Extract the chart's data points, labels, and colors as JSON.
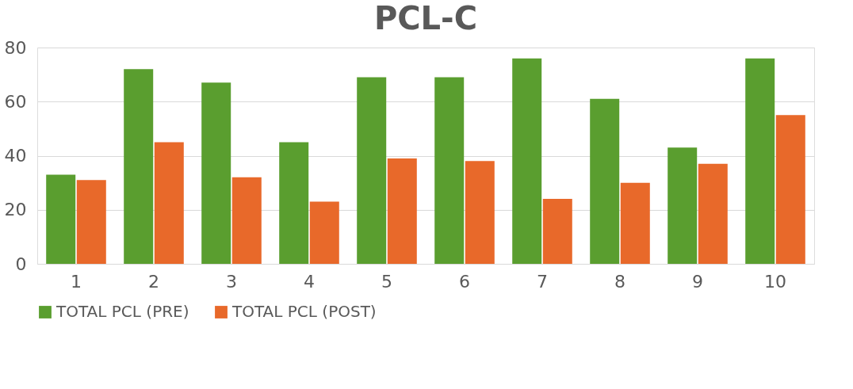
{
  "chart_data": {
    "type": "bar",
    "title": "PCL-C",
    "categories": [
      "1",
      "2",
      "3",
      "4",
      "5",
      "6",
      "7",
      "8",
      "9",
      "10"
    ],
    "series": [
      {
        "name": "TOTAL PCL (PRE)",
        "color": "#5a9e2f",
        "values": [
          33,
          72,
          67,
          45,
          69,
          69,
          76,
          61,
          43,
          76
        ]
      },
      {
        "name": "TOTAL PCL (POST)",
        "color": "#e8692a",
        "values": [
          31,
          45,
          32,
          23,
          39,
          38,
          24,
          30,
          37,
          55
        ]
      }
    ],
    "ylim": [
      0,
      80
    ],
    "yticks": [
      0,
      20,
      40,
      60,
      80
    ],
    "grid": "y",
    "legend": "bottom"
  }
}
